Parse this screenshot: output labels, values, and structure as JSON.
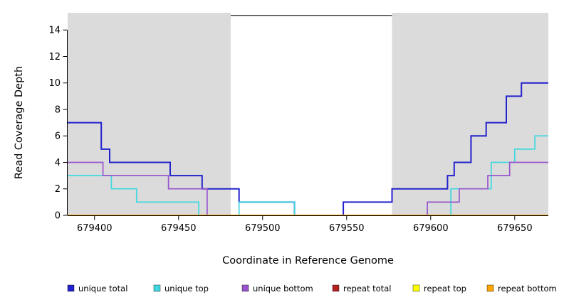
{
  "chart_data": {
    "type": "line",
    "subtype": "step-coverage-plot",
    "title": "",
    "xlabel": "Coordinate in Reference Genome",
    "ylabel": "Read Coverage Depth",
    "xlim": [
      679384,
      679670
    ],
    "ylim": [
      0,
      15.3
    ],
    "xticks": [
      679400,
      679450,
      679500,
      679550,
      679600,
      679650
    ],
    "yticks": [
      0,
      2,
      4,
      6,
      8,
      10,
      12,
      14
    ],
    "grid": false,
    "legend_position": "bottom",
    "shade_color": "#DBDBDB",
    "shaded_regions": [
      {
        "x0": 679384,
        "x1": 679481
      },
      {
        "x0": 679577,
        "x1": 679670
      }
    ],
    "annotation_line": {
      "x0": 679481,
      "x1": 679577,
      "y": 15.1,
      "color": "#000000"
    },
    "series": [
      {
        "name": "unique total",
        "color": "#2222CC",
        "points": [
          [
            679384,
            7
          ],
          [
            679404,
            5
          ],
          [
            679409,
            4
          ],
          [
            679445,
            3
          ],
          [
            679464,
            2
          ],
          [
            679486,
            1
          ],
          [
            679519,
            0
          ],
          [
            679548,
            1
          ],
          [
            679577,
            2
          ],
          [
            679610,
            3
          ],
          [
            679614,
            4
          ],
          [
            679624,
            6
          ],
          [
            679633,
            7
          ],
          [
            679645,
            9
          ],
          [
            679654,
            10
          ],
          [
            679670,
            10
          ]
        ]
      },
      {
        "name": "unique top",
        "color": "#3FD8E0",
        "points": [
          [
            679384,
            3
          ],
          [
            679410,
            2
          ],
          [
            679425,
            1
          ],
          [
            679462,
            0
          ],
          [
            679486,
            1
          ],
          [
            679519,
            0
          ],
          [
            679612,
            2
          ],
          [
            679636,
            4
          ],
          [
            679650,
            5
          ],
          [
            679662,
            6
          ],
          [
            679670,
            6
          ]
        ]
      },
      {
        "name": "unique bottom",
        "color": "#9955CC",
        "points": [
          [
            679384,
            4
          ],
          [
            679405,
            3
          ],
          [
            679444,
            2
          ],
          [
            679467,
            0
          ],
          [
            679598,
            1
          ],
          [
            679617,
            2
          ],
          [
            679634,
            3
          ],
          [
            679647,
            4
          ],
          [
            679670,
            4
          ]
        ]
      },
      {
        "name": "repeat total",
        "color": "#B22222",
        "points": [
          [
            679384,
            0
          ],
          [
            679670,
            0
          ]
        ]
      },
      {
        "name": "repeat top",
        "color": "#FFFF00",
        "points": [
          [
            679384,
            0
          ],
          [
            679670,
            0
          ]
        ]
      },
      {
        "name": "repeat bottom",
        "color": "#FFA500",
        "points": [
          [
            679384,
            0
          ],
          [
            679670,
            0
          ]
        ]
      }
    ]
  }
}
